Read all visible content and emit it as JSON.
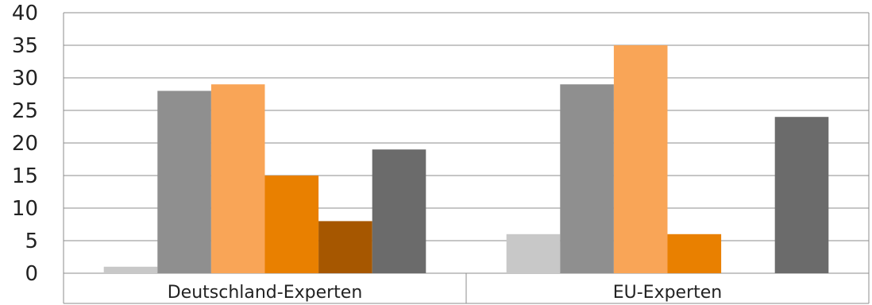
{
  "chart_data": {
    "type": "bar",
    "categories": [
      "Deutschland-Experten",
      "EU-Experten"
    ],
    "series": [
      {
        "values": [
          1,
          6
        ],
        "color": "#c8c8c8"
      },
      {
        "values": [
          28,
          29
        ],
        "color": "#8f8f8f"
      },
      {
        "values": [
          29,
          35
        ],
        "color": "#f9a557"
      },
      {
        "values": [
          15,
          6
        ],
        "color": "#e98000"
      },
      {
        "values": [
          8,
          0
        ],
        "color": "#a65700"
      },
      {
        "values": [
          19,
          24
        ],
        "color": "#6b6b6b"
      }
    ],
    "ylim": [
      0,
      40
    ],
    "yticks": [
      "0",
      "5",
      "10",
      "15",
      "20",
      "25",
      "30",
      "35",
      "40"
    ],
    "grid": true,
    "legend": "none"
  }
}
